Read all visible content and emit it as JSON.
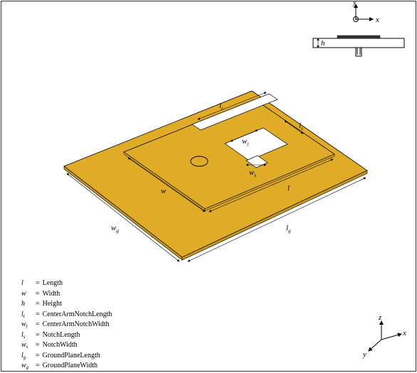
{
  "figure": {
    "type": "diagram",
    "background_color": "#ffffff",
    "border_color": "#333333",
    "antenna_fill": "#e0ac27",
    "antenna_stroke": "#000000",
    "antenna_stroke_width": 0.8,
    "arrow_color": "#000000",
    "arrow_width": 0.6
  },
  "top_axes": {
    "x_label": "x",
    "y_label": "y",
    "h_label": "h"
  },
  "bottom_axes": {
    "x_label": "x",
    "y_label": "y",
    "z_label": "z"
  },
  "dims": {
    "l": "l",
    "w": "w",
    "lt": "l",
    "lt_sub": "t",
    "wt": "w",
    "wt_sub": "t",
    "ls": "l",
    "ls_sub": "s",
    "ws": "w",
    "ws_sub": "s",
    "lg": "l",
    "lg_sub": "g",
    "wg": "w",
    "wg_sub": "g"
  },
  "legend": {
    "rows": [
      {
        "sym": "l",
        "sub": "",
        "val": "Length"
      },
      {
        "sym": "w",
        "sub": "",
        "val": "Width"
      },
      {
        "sym": "h",
        "sub": "",
        "val": "Height"
      },
      {
        "sym": "l",
        "sub": "t",
        "val": "CenterArmNotchLength"
      },
      {
        "sym": "w",
        "sub": "t",
        "val": "CenterArmNotchWidth"
      },
      {
        "sym": "l",
        "sub": "s",
        "val": "NotchLength"
      },
      {
        "sym": "w",
        "sub": "s",
        "val": "NotchWidth"
      },
      {
        "sym": "l",
        "sub": "g",
        "val": "GroundPlaneLength"
      },
      {
        "sym": "w",
        "sub": "g",
        "val": "GroundPlaneWidth"
      }
    ]
  }
}
